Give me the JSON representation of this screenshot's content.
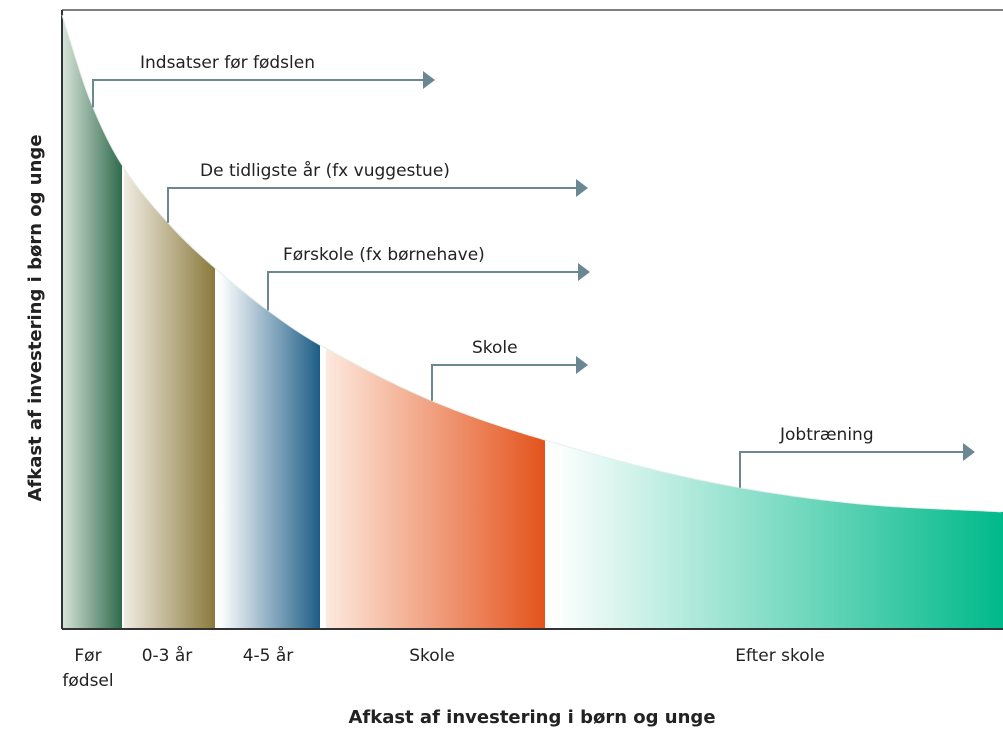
{
  "labels": {
    "y_axis": "Afkast af investering i børn og unge",
    "x_axis": "Afkast af investering i børn og unge"
  },
  "stages": [
    {
      "label": [
        "Før",
        "fødsel"
      ]
    },
    {
      "label": [
        "0-3 år"
      ]
    },
    {
      "label": [
        "4-5 år"
      ]
    },
    {
      "label": [
        "Skole"
      ]
    },
    {
      "label": [
        "Efter skole"
      ]
    }
  ],
  "arrows": [
    {
      "label": "Indsatser før fødslen"
    },
    {
      "label": "De tidligste år (fx vuggestue)"
    },
    {
      "label": "Førskole (fx børnehave)"
    },
    {
      "label": "Skole"
    },
    {
      "label": "Jobtræning"
    }
  ]
}
